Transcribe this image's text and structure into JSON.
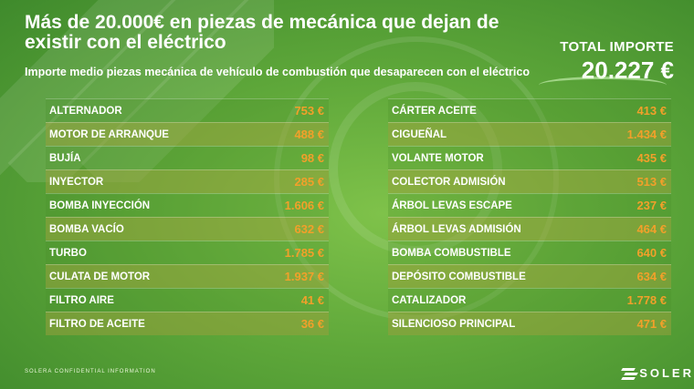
{
  "header": {
    "title": "Más de 20.000€ en piezas de mecánica que dejan de existir con el eléctrico",
    "subtitle": "Importe medio piezas mecánica de vehículo de combustión que desaparecen con el eléctrico"
  },
  "total": {
    "label": "TOTAL IMPORTE",
    "value": "20.227 €"
  },
  "colors": {
    "value_text": "#f2a02a",
    "background": "#5fa83a"
  },
  "left_table": [
    {
      "name": "ALTERNADOR",
      "value": "753 €"
    },
    {
      "name": "MOTOR DE ARRANQUE",
      "value": "488 €"
    },
    {
      "name": "BUJÍA",
      "value": "98 €"
    },
    {
      "name": "INYECTOR",
      "value": "285 €"
    },
    {
      "name": "BOMBA INYECCIÓN",
      "value": "1.606 €"
    },
    {
      "name": "BOMBA VACÍO",
      "value": "632 €"
    },
    {
      "name": "TURBO",
      "value": "1.785 €"
    },
    {
      "name": "CULATA DE MOTOR",
      "value": "1.937 €"
    },
    {
      "name": "FILTRO AIRE",
      "value": "41 €"
    },
    {
      "name": "FILTRO DE ACEITE",
      "value": "36 €"
    }
  ],
  "right_table": [
    {
      "name": "CÁRTER ACEITE",
      "value": "413 €"
    },
    {
      "name": "CIGUEÑAL",
      "value": "1.434 €"
    },
    {
      "name": "VOLANTE MOTOR",
      "value": "435 €"
    },
    {
      "name": "COLECTOR ADMISIÓN",
      "value": "513 €"
    },
    {
      "name": "ÁRBOL LEVAS ESCAPE",
      "value": "237 €"
    },
    {
      "name": "ÁRBOL LEVAS ADMISIÓN",
      "value": "464 €"
    },
    {
      "name": "BOMBA COMBUSTIBLE",
      "value": "640 €"
    },
    {
      "name": "DEPÓSITO COMBUSTIBLE",
      "value": "634 €"
    },
    {
      "name": "CATALIZADOR",
      "value": "1.778 €"
    },
    {
      "name": "SILENCIOSO PRINCIPAL",
      "value": "471 €"
    }
  ],
  "footer": {
    "note": "SOLERA CONFIDENTIAL INFORMATION",
    "logo_text": "SOLER"
  }
}
